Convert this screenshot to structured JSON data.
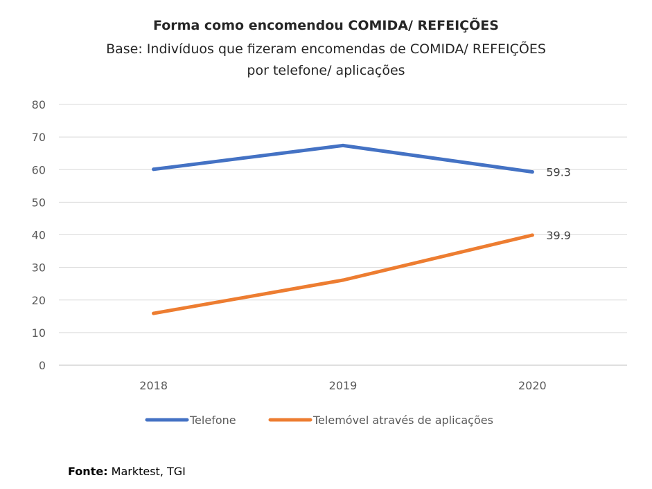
{
  "chart_data": {
    "type": "line",
    "title": "Forma como encomendou COMIDA/ REFEIÇÕES",
    "subtitle": "Base: Indivíduos que fizeram encomendas de COMIDA/ REFEIÇÕES\npor telefone/ aplicações",
    "xlabel": "",
    "ylabel": "",
    "categories": [
      "2018",
      "2019",
      "2020"
    ],
    "ylim": [
      0,
      80
    ],
    "yticks": [
      "0",
      "10",
      "20",
      "30",
      "40",
      "50",
      "60",
      "70",
      "80"
    ],
    "grid": true,
    "legend_position": "bottom",
    "series": [
      {
        "name": "Telefone",
        "values": [
          60.1,
          67.4,
          59.3
        ],
        "color": "#4472C4",
        "data_labels": [
          null,
          null,
          "59.3"
        ]
      },
      {
        "name": "Telemóvel através de aplicações",
        "values": [
          15.9,
          26.1,
          39.9
        ],
        "color": "#ED7D31",
        "data_labels": [
          null,
          null,
          "39.9"
        ]
      }
    ]
  },
  "source": {
    "label": "Fonte:",
    "text": " Marktest, TGI"
  }
}
